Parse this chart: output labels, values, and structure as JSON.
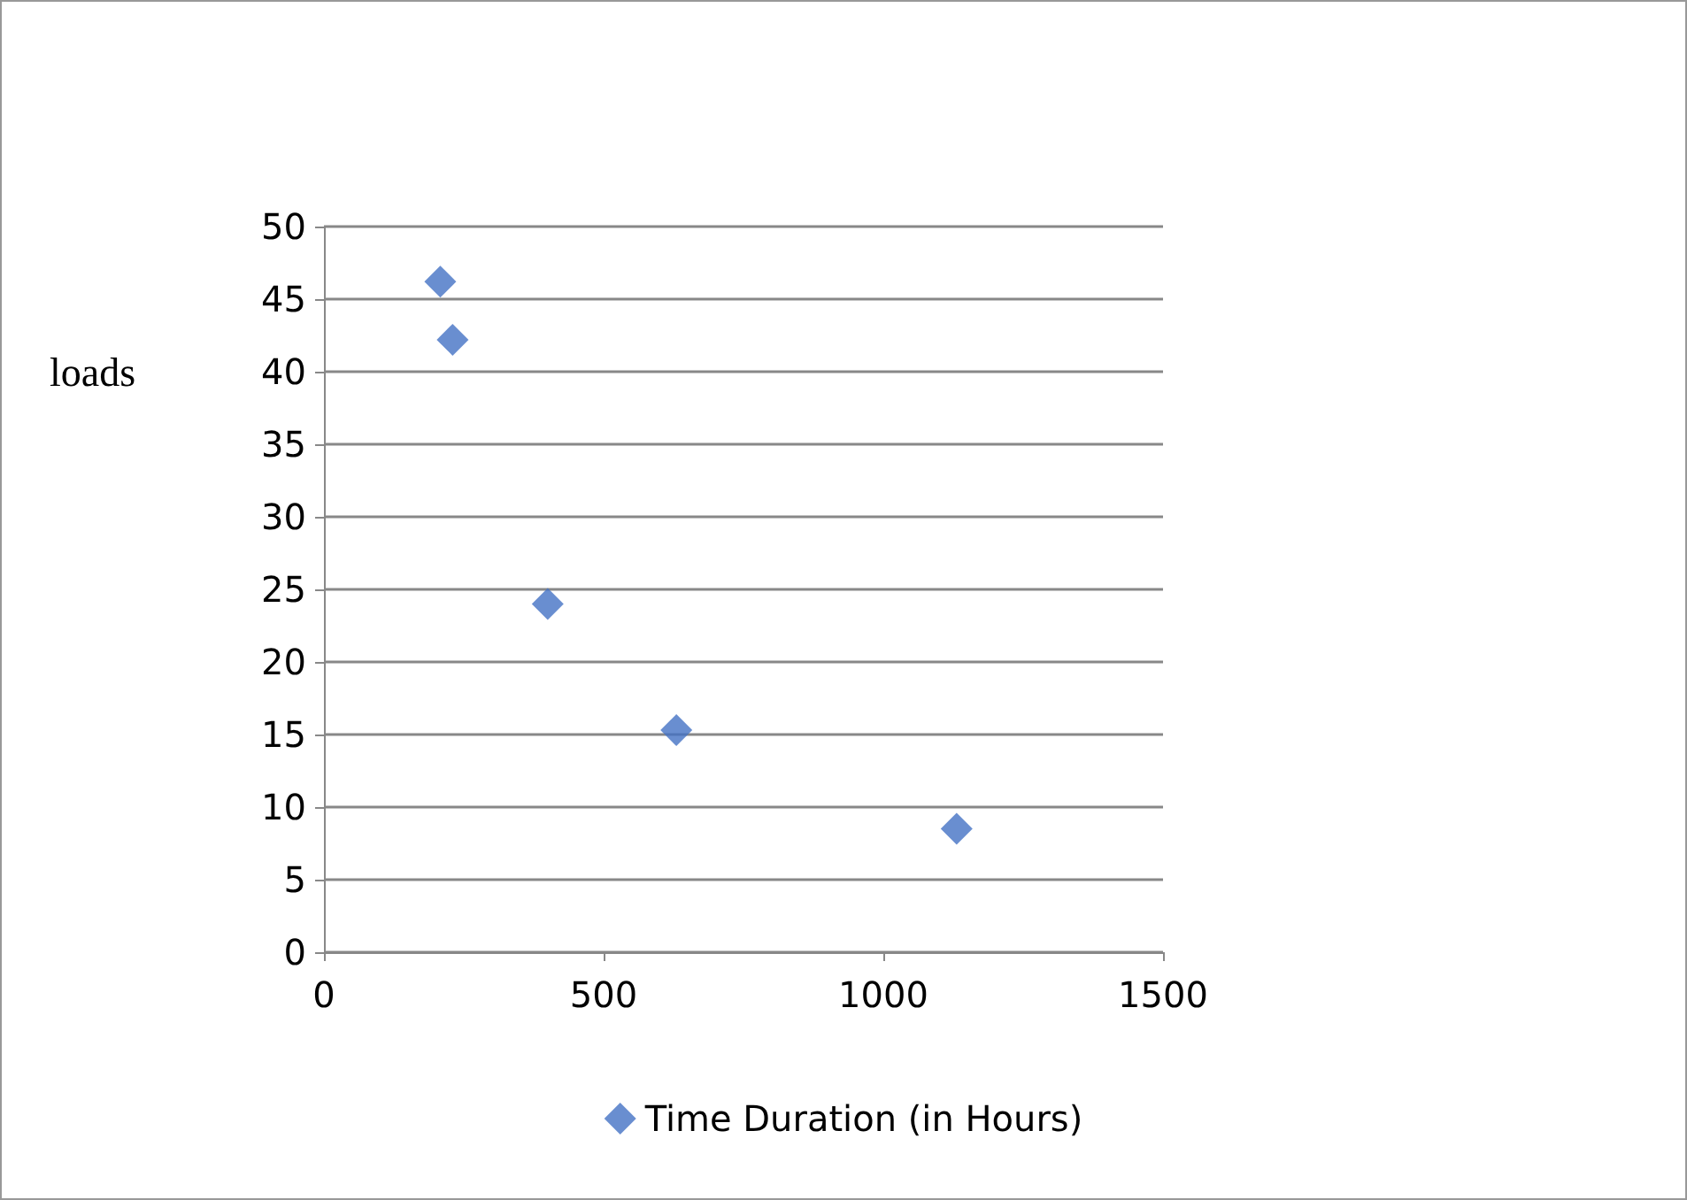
{
  "chart_data": {
    "type": "scatter",
    "ylabel": "loads",
    "series": [
      {
        "name": "Time Duration (in Hours)",
        "color": "#4472c4",
        "x": [
          208,
          230,
          400,
          630,
          1131
        ],
        "values": [
          46.2,
          42.2,
          24.0,
          15.3,
          8.5
        ]
      }
    ],
    "xlim": [
      0,
      1500
    ],
    "xticks": [
      0,
      500,
      1000,
      1500
    ],
    "ylim": [
      0,
      50
    ],
    "yticks": [
      0,
      5,
      10,
      15,
      20,
      25,
      30,
      35,
      40,
      45,
      50
    ],
    "grid": "y",
    "legend": "bottom",
    "marker": "diamond"
  }
}
